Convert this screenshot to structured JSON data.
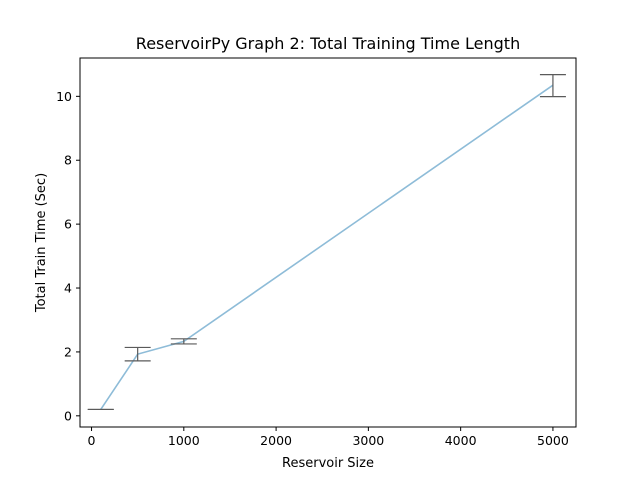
{
  "chart_data": {
    "type": "line",
    "title": "ReservoirPy Graph 2: Total Training Time Length",
    "xlabel": "Reservoir Size",
    "ylabel": "Total Train Time (Sec)",
    "xlim": [
      -125,
      5250
    ],
    "ylim": [
      -0.35,
      11.2
    ],
    "x_ticks": [
      0,
      1000,
      2000,
      3000,
      4000,
      5000
    ],
    "y_ticks": [
      0,
      2,
      4,
      6,
      8,
      10
    ],
    "grid": false,
    "line_color": "#8ebcd8",
    "errorbar_color": "#5a5a5a",
    "series": [
      {
        "x": [
          100,
          500,
          1000,
          5000
        ],
        "y": [
          0.2,
          1.93,
          2.33,
          10.35
        ],
        "yerr_low": [
          0.2,
          1.72,
          2.25,
          9.99
        ],
        "yerr_high": [
          0.2,
          2.14,
          2.41,
          10.68
        ]
      }
    ]
  }
}
